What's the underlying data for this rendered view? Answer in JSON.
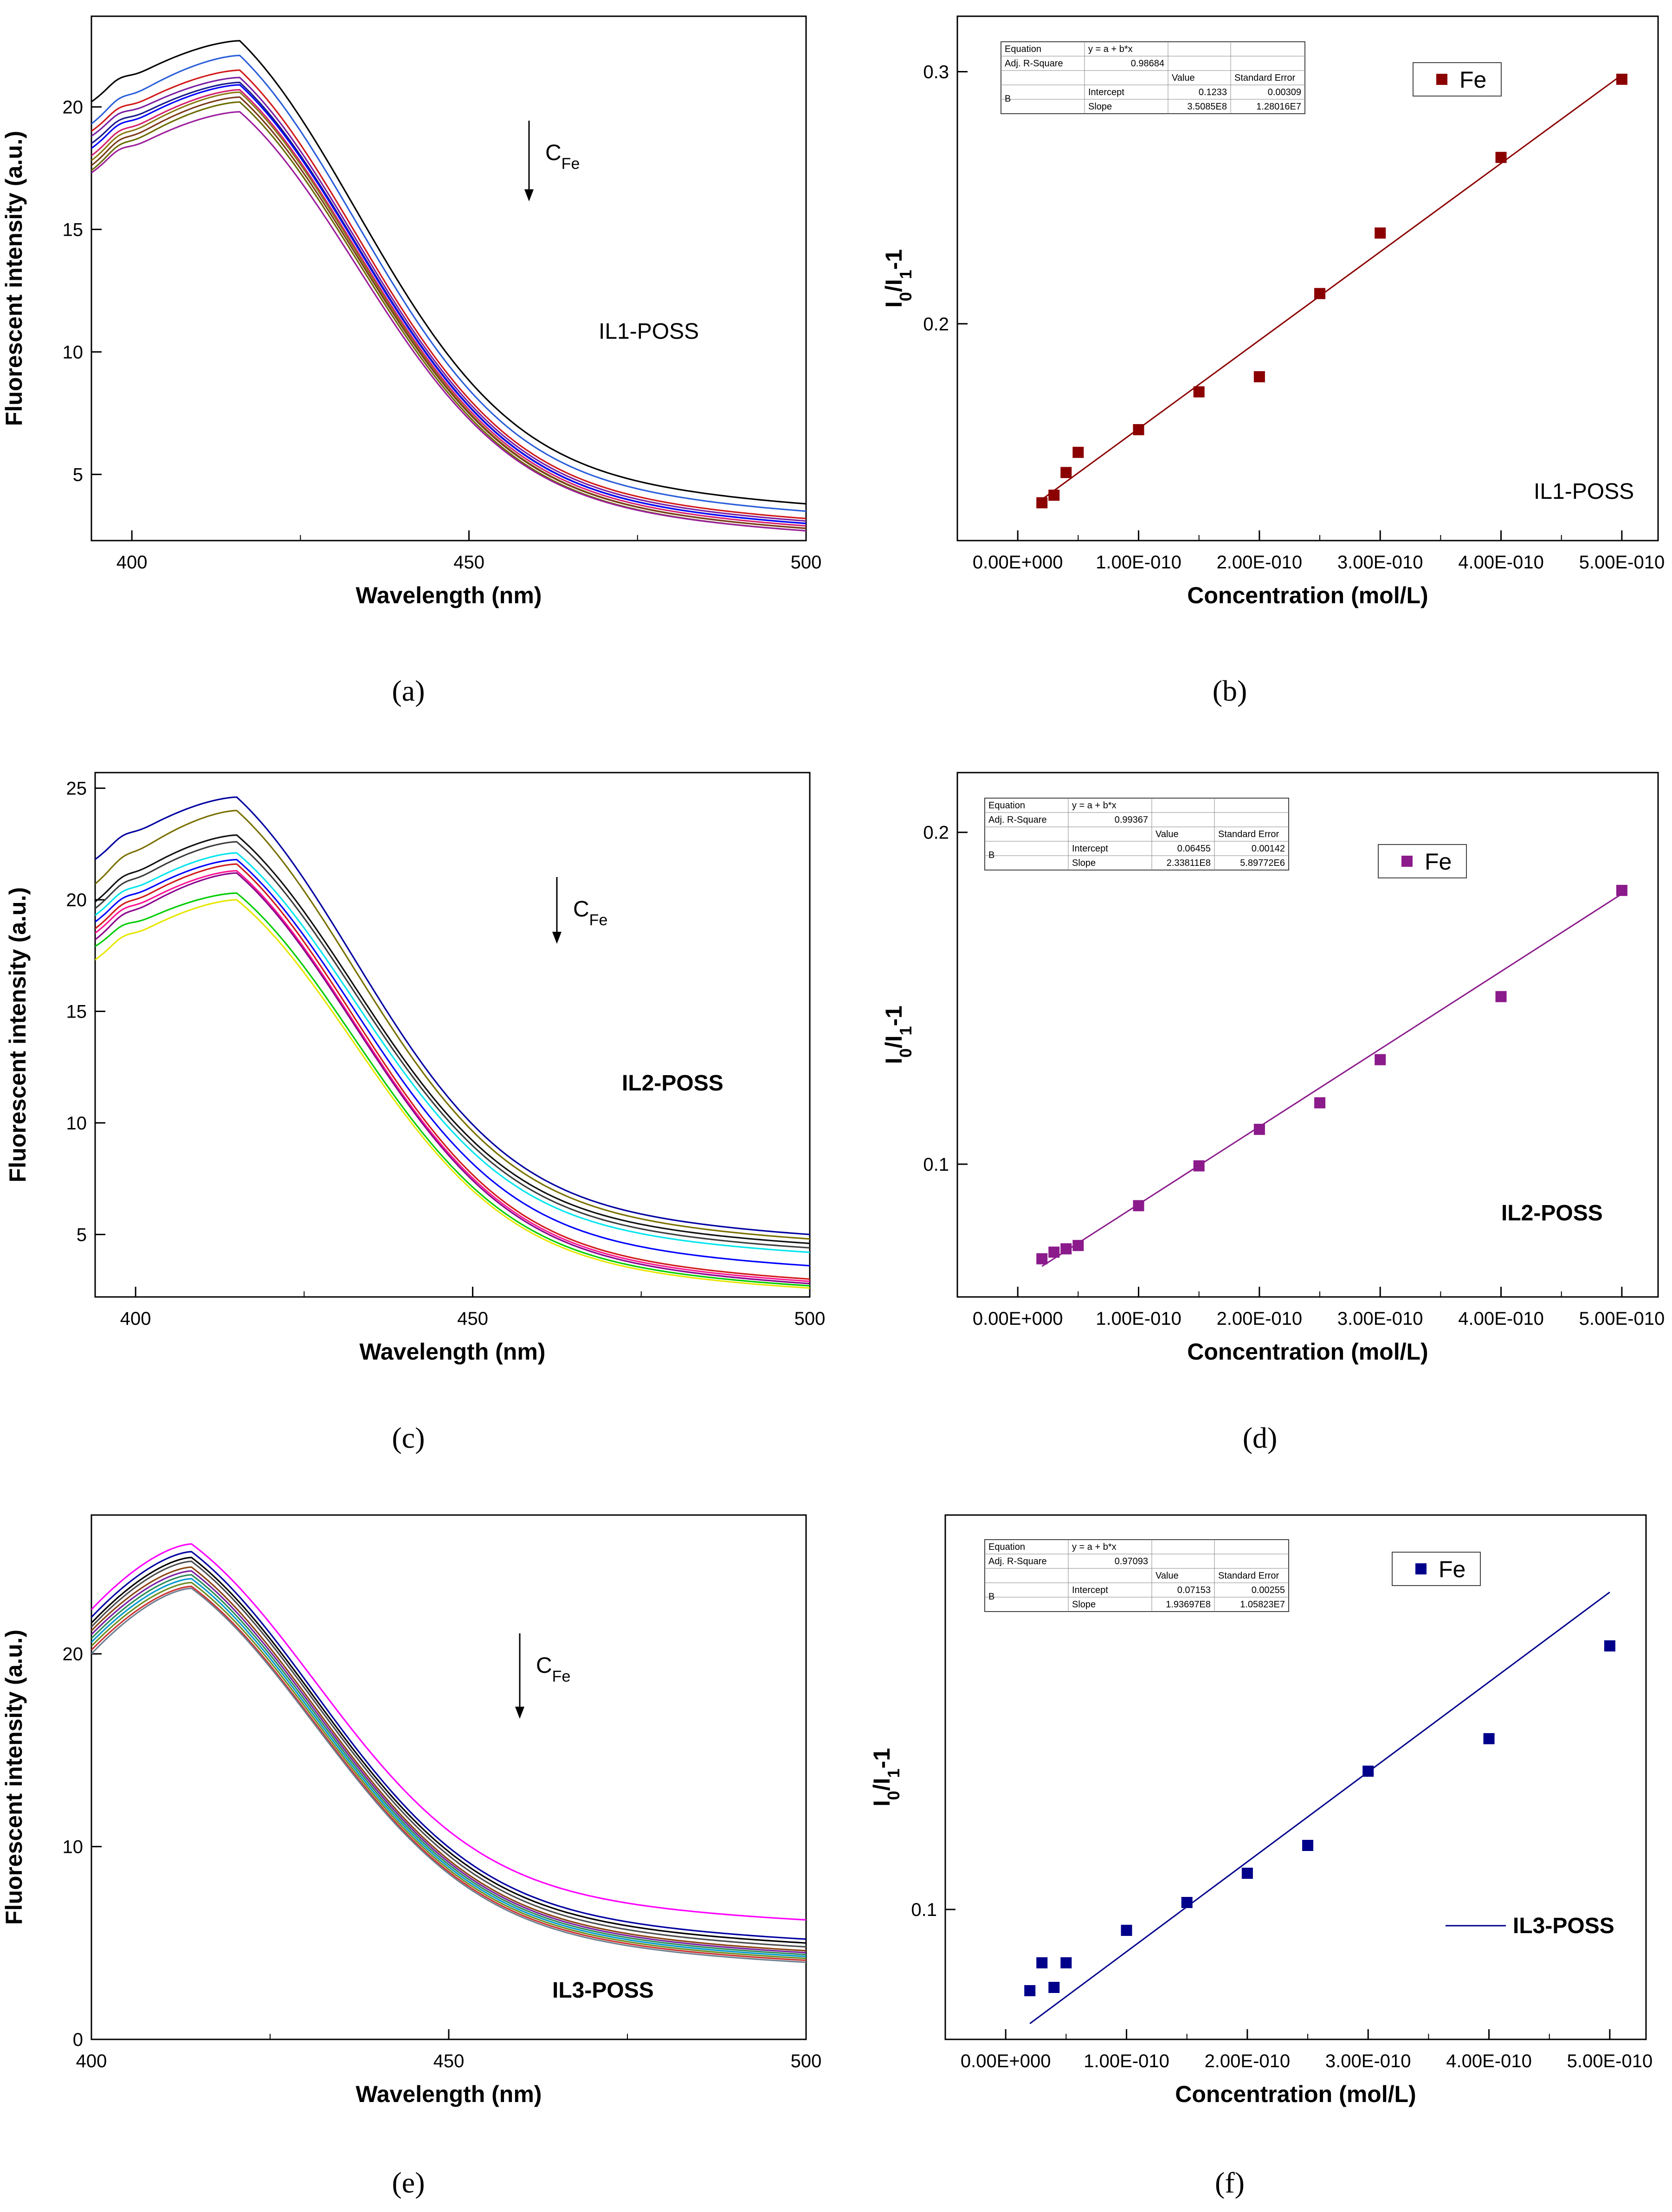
{
  "chart_data": [
    {
      "id": "a",
      "type": "line",
      "panel_label": "(a)",
      "xlabel": "Wavelength (nm)",
      "ylabel": "Fluorescent intensity (a.u.)",
      "xlim": [
        394,
        500
      ],
      "ylim": [
        2.3,
        23.7
      ],
      "xticks": [
        400,
        450,
        500
      ],
      "yticks": [
        5,
        10,
        15,
        20
      ],
      "annotation": "IL1-POSS",
      "annotation_bold": false,
      "arrow_label": "C",
      "arrow_sub": "Fe",
      "peak_x": 416,
      "series_colors": [
        "#000000",
        "#2b5fd9",
        "#d11a1a",
        "#7a1fa2",
        "#1a1a8c",
        "#0000ff",
        "#d4206f",
        "#8a7a14",
        "#7a3b1a",
        "#6b6b00",
        "#9c1f9c"
      ],
      "series": [
        {
          "start": 20.2,
          "peak": 22.7,
          "end": 3.8
        },
        {
          "start": 19.3,
          "peak": 22.1,
          "end": 3.5
        },
        {
          "start": 19.0,
          "peak": 21.5,
          "end": 3.2
        },
        {
          "start": 18.8,
          "peak": 21.2,
          "end": 3.1
        },
        {
          "start": 18.5,
          "peak": 21.0,
          "end": 3.0
        },
        {
          "start": 18.3,
          "peak": 20.9,
          "end": 3.0
        },
        {
          "start": 18.0,
          "peak": 20.7,
          "end": 2.9
        },
        {
          "start": 17.8,
          "peak": 20.6,
          "end": 2.8
        },
        {
          "start": 17.6,
          "peak": 20.4,
          "end": 2.8
        },
        {
          "start": 17.4,
          "peak": 20.2,
          "end": 2.7
        },
        {
          "start": 17.3,
          "peak": 19.8,
          "end": 2.7
        }
      ]
    },
    {
      "id": "b",
      "type": "scatter",
      "panel_label": "(b)",
      "xlabel": "Concentration (mol/L)",
      "ylabel": "I0/I1-1",
      "xlim": [
        -5e-11,
        5.3e-10
      ],
      "ylim": [
        0.114,
        0.322
      ],
      "xticks": [
        0,
        1e-10,
        2e-10,
        3e-10,
        4e-10,
        5e-10
      ],
      "xtick_labels": [
        "0.00E+000",
        "1.00E-010",
        "2.00E-010",
        "3.00E-010",
        "4.00E-010",
        "5.00E-010"
      ],
      "yticks": [
        0.2,
        0.3
      ],
      "ytick_labels": [
        "0.2",
        "0.3"
      ],
      "x": [
        2e-11,
        3e-11,
        4e-11,
        5e-11,
        1e-10,
        1.5e-10,
        2e-10,
        2.5e-10,
        3e-10,
        4e-10,
        5e-10
      ],
      "y": [
        0.129,
        0.132,
        0.141,
        0.149,
        0.158,
        0.173,
        0.179,
        0.212,
        0.236,
        0.266,
        0.297
      ],
      "fit": {
        "intercept": 0.1233,
        "slope": 350850000.0
      },
      "color": "#8b0000",
      "legend": "Fe",
      "annotation": "IL1-POSS",
      "annotation_bold": false,
      "table": {
        "equation_label": "Equation",
        "equation": "y = a + b*x",
        "r2_label": "Adj. R-Square",
        "r2": "0.98684",
        "head_intercept": "Intercept",
        "head_value": "Value",
        "head_se": "Standard Error",
        "series_label": "B",
        "slope_label": "Slope",
        "intercept_value": "0.1233",
        "intercept_se": "0.00309",
        "slope_value": "3.5085E8",
        "slope_se": "1.28016E7"
      }
    },
    {
      "id": "c",
      "type": "line",
      "panel_label": "(c)",
      "xlabel": "Wavelength (nm)",
      "ylabel": "Fluorescent intensity (a.u.)",
      "xlim": [
        394,
        500
      ],
      "ylim": [
        2.2,
        25.7
      ],
      "xticks": [
        400,
        450,
        500
      ],
      "yticks": [
        5,
        10,
        15,
        20,
        25
      ],
      "annotation": "IL2-POSS",
      "annotation_bold": true,
      "arrow_label": "C",
      "arrow_sub": "Fe",
      "peak_x": 415,
      "series_colors": [
        "#0000a0",
        "#7a7000",
        "#111111",
        "#3d3d3d",
        "#00e5ee",
        "#0000ff",
        "#d11a1a",
        "#ff1493",
        "#8b008b",
        "#00cc00",
        "#e6e600"
      ],
      "series": [
        {
          "start": 21.8,
          "peak": 24.6,
          "end": 5.0
        },
        {
          "start": 20.7,
          "peak": 24.0,
          "end": 4.8
        },
        {
          "start": 19.9,
          "peak": 22.9,
          "end": 4.6
        },
        {
          "start": 19.6,
          "peak": 22.6,
          "end": 4.4
        },
        {
          "start": 19.3,
          "peak": 22.1,
          "end": 4.2
        },
        {
          "start": 19.0,
          "peak": 21.8,
          "end": 3.6
        },
        {
          "start": 18.7,
          "peak": 21.6,
          "end": 3.0
        },
        {
          "start": 18.5,
          "peak": 21.3,
          "end": 2.9
        },
        {
          "start": 18.2,
          "peak": 21.2,
          "end": 2.8
        },
        {
          "start": 17.9,
          "peak": 20.3,
          "end": 2.7
        },
        {
          "start": 17.3,
          "peak": 20.0,
          "end": 2.6
        }
      ]
    },
    {
      "id": "d",
      "type": "scatter",
      "panel_label": "(d)",
      "xlabel": "Concentration (mol/L)",
      "ylabel": "I0/I1-1",
      "xlim": [
        -5e-11,
        5.3e-10
      ],
      "ylim": [
        0.06,
        0.218
      ],
      "xticks": [
        0,
        1e-10,
        2e-10,
        3e-10,
        4e-10,
        5e-10
      ],
      "xtick_labels": [
        "0.00E+000",
        "1.00E-010",
        "2.00E-010",
        "3.00E-010",
        "4.00E-010",
        "5.00E-010"
      ],
      "yticks": [
        0.1,
        0.2
      ],
      "ytick_labels": [
        "0.1",
        "0.2"
      ],
      "x": [
        2e-11,
        3e-11,
        4e-11,
        5e-11,
        1e-10,
        1.5e-10,
        2e-10,
        2.5e-10,
        3e-10,
        4e-10,
        5e-10
      ],
      "y": [
        0.0715,
        0.0735,
        0.0745,
        0.0755,
        0.0875,
        0.0995,
        0.1105,
        0.1185,
        0.1315,
        0.1505,
        0.1825
      ],
      "fit": {
        "intercept": 0.06455,
        "slope": 233811000.0
      },
      "color": "#8b1a8b",
      "legend": "Fe",
      "annotation": "IL2-POSS",
      "annotation_bold": true,
      "table": {
        "equation_label": "Equation",
        "equation": "y = a + b*x",
        "r2_label": "Adj. R-Square",
        "r2": "0.99367",
        "head_intercept": "Intercept",
        "head_value": "Value",
        "head_se": "Standard Error",
        "series_label": "B",
        "slope_label": "Slope",
        "intercept_value": "0.06455",
        "intercept_se": "0.00142",
        "slope_value": "2.33811E8",
        "slope_se": "5.89772E6"
      }
    },
    {
      "id": "e",
      "type": "line",
      "panel_label": "(e)",
      "xlabel": "Wavelength (nm)",
      "ylabel": "Fluorescent intensity (a.u.)",
      "xlim": [
        400,
        500
      ],
      "ylim": [
        0,
        27.2
      ],
      "xticks": [
        400,
        450,
        500
      ],
      "yticks": [
        0,
        10,
        20
      ],
      "annotation": "IL3-POSS",
      "annotation_bold": true,
      "arrow_label": "C",
      "arrow_sub": "Fe",
      "peak_x": 414,
      "series_colors": [
        "#ff00ff",
        "#0000a0",
        "#000000",
        "#4d4d4d",
        "#8b4513",
        "#7a1fa2",
        "#2e8b57",
        "#0099cc",
        "#6b8e23",
        "#cc3333",
        "#708090"
      ],
      "series": [
        {
          "start": 22.3,
          "peak": 25.7,
          "end": 6.2
        },
        {
          "start": 21.9,
          "peak": 25.3,
          "end": 5.2
        },
        {
          "start": 21.6,
          "peak": 25.0,
          "end": 5.0
        },
        {
          "start": 21.4,
          "peak": 24.8,
          "end": 4.8
        },
        {
          "start": 21.2,
          "peak": 24.5,
          "end": 4.6
        },
        {
          "start": 21.0,
          "peak": 24.3,
          "end": 4.5
        },
        {
          "start": 20.8,
          "peak": 24.1,
          "end": 4.4
        },
        {
          "start": 20.6,
          "peak": 23.9,
          "end": 4.3
        },
        {
          "start": 20.4,
          "peak": 23.7,
          "end": 4.2
        },
        {
          "start": 20.2,
          "peak": 23.5,
          "end": 4.1
        },
        {
          "start": 20.0,
          "peak": 23.4,
          "end": 4.0
        }
      ]
    },
    {
      "id": "f",
      "type": "scatter",
      "panel_label": "(f)",
      "xlabel": "Concentration (mol/L)",
      "ylabel": "I0/I1-1",
      "xlim": [
        -5e-11,
        5.3e-10
      ],
      "ylim": [
        0.072,
        0.185
      ],
      "xticks": [
        0,
        1e-10,
        2e-10,
        3e-10,
        4e-10,
        5e-10
      ],
      "xtick_labels": [
        "0.00E+000",
        "1.00E-010",
        "2.00E-010",
        "3.00E-010",
        "4.00E-010",
        "5.00E-010"
      ],
      "yticks": [
        0.1
      ],
      "ytick_labels": [
        "0.1"
      ],
      "x": [
        2e-11,
        3e-11,
        4e-11,
        5e-11,
        1e-10,
        1.5e-10,
        2e-10,
        2.5e-10,
        3e-10,
        4e-10,
        5e-10
      ],
      "y": [
        0.0825,
        0.0885,
        0.0832,
        0.0885,
        0.0955,
        0.1015,
        0.1078,
        0.1138,
        0.1298,
        0.1368,
        0.1568
      ],
      "fit": {
        "intercept": 0.07153,
        "slope": 193697000.0
      },
      "color": "#00008b",
      "legend": "Fe",
      "annotation": "IL3-POSS",
      "annotation_bold": true,
      "table": {
        "equation_label": "Equation",
        "equation": "y = a + b*x",
        "r2_label": "Adj. R-Square",
        "r2": "0.97093",
        "head_intercept": "Intercept",
        "head_value": "Value",
        "head_se": "Standard Error",
        "series_label": "B",
        "slope_label": "Slope",
        "intercept_value": "0.07153",
        "intercept_se": "0.00255",
        "slope_value": "1.93697E8",
        "slope_se": "1.05823E7"
      }
    }
  ]
}
